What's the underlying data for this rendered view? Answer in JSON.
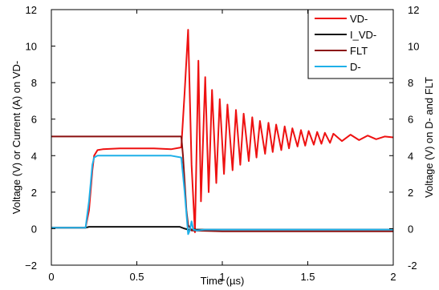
{
  "chart_data": {
    "type": "line",
    "xlabel": "Time (µs)",
    "ylabel_left": "Voltage (V) or Current (A) on VD-",
    "ylabel_right": "Voltage (V) on D- and FLT",
    "xlim": [
      0,
      2
    ],
    "ylim": [
      -2,
      12
    ],
    "ylim_right": [
      -2,
      12
    ],
    "x_ticks": [
      0,
      0.5,
      1,
      1.5,
      2
    ],
    "x_tick_labels": [
      "0",
      "0.5",
      "1",
      "1.5",
      "2"
    ],
    "y_ticks": [
      -2,
      0,
      2,
      4,
      6,
      8,
      10,
      12
    ],
    "y_tick_labels": [
      "−2",
      "0",
      "2",
      "4",
      "6",
      "8",
      "10",
      "12"
    ],
    "y_tick_labels_right": [
      "-2",
      "0",
      "2",
      "4",
      "6",
      "8",
      "10",
      "12"
    ],
    "grid": false,
    "legend_position": "top-right",
    "series": [
      {
        "name": "VD-",
        "color": "#ee1111",
        "x": [
          0,
          0.2,
          0.22,
          0.24,
          0.25,
          0.27,
          0.3,
          0.4,
          0.5,
          0.6,
          0.7,
          0.76,
          0.78,
          0.8,
          0.82,
          0.84,
          0.86,
          0.875,
          0.9,
          0.92,
          0.94,
          0.965,
          0.985,
          1.01,
          1.03,
          1.06,
          1.08,
          1.105,
          1.125,
          1.155,
          1.175,
          1.2,
          1.22,
          1.25,
          1.27,
          1.295,
          1.315,
          1.345,
          1.365,
          1.39,
          1.41,
          1.44,
          1.46,
          1.485,
          1.505,
          1.535,
          1.555,
          1.58,
          1.6,
          1.63,
          1.65,
          1.7,
          1.75,
          1.8,
          1.85,
          1.9,
          1.95,
          2.0
        ],
        "y": [
          0.05,
          0.05,
          1.0,
          3.2,
          4.0,
          4.3,
          4.35,
          4.4,
          4.4,
          4.4,
          4.35,
          4.45,
          7.5,
          10.9,
          3.5,
          -0.2,
          9.2,
          1.5,
          8.3,
          2.0,
          7.6,
          2.5,
          7.1,
          3.0,
          6.8,
          3.2,
          6.5,
          3.5,
          6.3,
          3.7,
          6.1,
          3.9,
          5.9,
          4.1,
          5.8,
          4.2,
          5.7,
          4.3,
          5.6,
          4.4,
          5.5,
          4.5,
          5.4,
          4.55,
          5.35,
          4.6,
          5.3,
          4.65,
          5.25,
          4.7,
          5.2,
          4.8,
          5.15,
          4.85,
          5.1,
          4.9,
          5.05,
          5.0
        ]
      },
      {
        "name": "I_VD-",
        "color": "#111111",
        "x": [
          0,
          0.2,
          0.22,
          0.25,
          0.5,
          0.75,
          0.78,
          0.8,
          1.0,
          1.5,
          2.0
        ],
        "y": [
          0.05,
          0.05,
          0.1,
          0.1,
          0.1,
          0.1,
          0.0,
          -0.05,
          -0.05,
          -0.05,
          -0.05
        ]
      },
      {
        "name": "FLT",
        "color": "#8b1010",
        "x": [
          0,
          0.2,
          0.4,
          0.6,
          0.76,
          0.77,
          0.79,
          0.8,
          0.82,
          1.0,
          1.5,
          2.0
        ],
        "y": [
          5.05,
          5.05,
          5.05,
          5.05,
          5.05,
          4.0,
          1.0,
          0.2,
          -0.1,
          -0.15,
          -0.15,
          -0.15
        ]
      },
      {
        "name": "D-",
        "color": "#1fb0e8",
        "x": [
          0,
          0.2,
          0.22,
          0.24,
          0.25,
          0.27,
          0.3,
          0.5,
          0.7,
          0.76,
          0.78,
          0.8,
          0.81,
          0.82,
          0.83,
          0.85,
          0.9,
          1.0,
          1.5,
          2.0
        ],
        "y": [
          0.05,
          0.05,
          1.5,
          3.5,
          3.9,
          4.0,
          4.0,
          4.0,
          4.0,
          3.9,
          2.0,
          -0.3,
          -0.1,
          0.4,
          -0.05,
          -0.1,
          -0.05,
          -0.05,
          -0.05,
          -0.05
        ]
      }
    ]
  }
}
